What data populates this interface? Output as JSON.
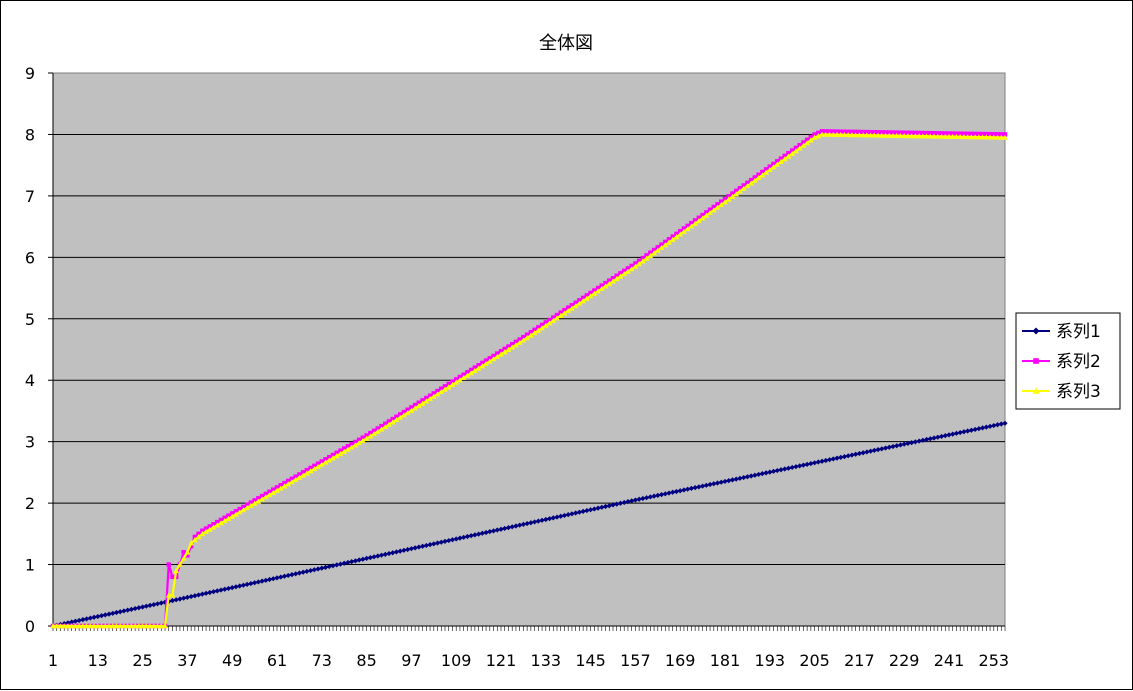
{
  "chart_data": {
    "type": "line",
    "title": "全体図",
    "xlabel": "",
    "ylabel": "",
    "ylim": [
      0,
      9
    ],
    "yticks": [
      "0",
      "1",
      "2",
      "3",
      "4",
      "5",
      "6",
      "7",
      "8",
      "9"
    ],
    "xlim": [
      1,
      256
    ],
    "xticks": [
      "1",
      "13",
      "25",
      "37",
      "49",
      "61",
      "73",
      "85",
      "97",
      "109",
      "121",
      "133",
      "145",
      "157",
      "169",
      "181",
      "193",
      "205",
      "217",
      "229",
      "241",
      "253"
    ],
    "grid": "horizontal",
    "legend": "right",
    "plot_background": "#c0c0c0",
    "series": [
      {
        "name": "系列1",
        "color": "#000080",
        "marker": "diamond",
        "x": [
          1,
          32,
          85,
          157,
          256
        ],
        "y": [
          0.0,
          0.4,
          1.1,
          2.05,
          3.3
        ]
      },
      {
        "name": "系列2",
        "color": "#ff00ff",
        "marker": "square",
        "x": [
          1,
          30,
          31,
          32,
          33,
          34,
          35,
          36,
          37,
          38,
          39,
          40,
          41,
          85,
          127,
          157,
          205,
          207,
          256
        ],
        "y": [
          0.0,
          0.0,
          0.0,
          1.0,
          0.8,
          0.8,
          1.0,
          1.2,
          1.15,
          1.3,
          1.45,
          1.5,
          1.55,
          3.1,
          4.7,
          5.9,
          8.0,
          8.05,
          8.0
        ]
      },
      {
        "name": "系列3",
        "color": "#ffff00",
        "marker": "triangle",
        "x": [
          1,
          30,
          31,
          32,
          33,
          34,
          35,
          36,
          37,
          38,
          39,
          40,
          41,
          85,
          127,
          157,
          205,
          207,
          256
        ],
        "y": [
          0.0,
          0.0,
          0.0,
          0.5,
          0.5,
          0.9,
          1.0,
          1.1,
          1.2,
          1.35,
          1.4,
          1.45,
          1.5,
          3.05,
          4.65,
          5.85,
          7.95,
          8.0,
          7.95
        ]
      }
    ]
  }
}
